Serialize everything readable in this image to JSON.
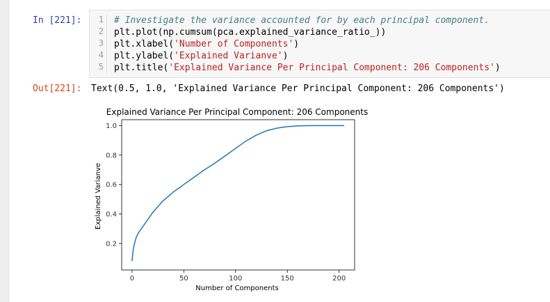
{
  "cell": {
    "in_prompt": "In [221]:",
    "line_numbers": [
      "1",
      "2",
      "3",
      "4",
      "5"
    ],
    "code": {
      "line1_comment": "# Investigate the variance accounted for by each principal component.",
      "line2": "plt.plot(np.cumsum(pca.explained_variance_ratio_))",
      "line3_pre": "plt.xlabel(",
      "line3_str": "'Number of Components'",
      "line3_post": ")",
      "line4_pre": "plt.ylabel(",
      "line4_str": "'Explained Varianve'",
      "line4_post": ")",
      "line5_pre": "plt.title(",
      "line5_str": "'Explained Variance Per Principal Component: 206 Components'",
      "line5_post": ")"
    },
    "out_prompt": "Out[221]:",
    "out_text": "Text(0.5, 1.0, 'Explained Variance Per Principal Component: 206 Components')"
  },
  "chart_data": {
    "type": "line",
    "title": "Explained Variance Per Principal Component: 206 Components",
    "xlabel": "Number of Components",
    "ylabel": "Explained Varianve",
    "xlim": [
      -10,
      215
    ],
    "ylim": [
      0.02,
      1.04
    ],
    "x_ticks": [
      0,
      50,
      100,
      150,
      200
    ],
    "x_tick_labels": [
      "0",
      "50",
      "100",
      "150",
      "200"
    ],
    "y_ticks": [
      0.2,
      0.4,
      0.6,
      0.8,
      1.0
    ],
    "y_tick_labels": [
      "0.2",
      "0.4",
      "0.6",
      "0.8",
      "1.0"
    ],
    "grid": false,
    "line_color": "#1f77b4",
    "series": [
      {
        "x": [
          0,
          1,
          2,
          4,
          6,
          10,
          15,
          20,
          25,
          30,
          40,
          50,
          60,
          70,
          80,
          90,
          100,
          110,
          120,
          130,
          140,
          150,
          160,
          170,
          180,
          190,
          200,
          205
        ],
        "y": [
          0.08,
          0.15,
          0.19,
          0.24,
          0.27,
          0.31,
          0.36,
          0.41,
          0.45,
          0.49,
          0.55,
          0.6,
          0.65,
          0.7,
          0.745,
          0.795,
          0.845,
          0.895,
          0.935,
          0.965,
          0.983,
          0.993,
          0.998,
          1.0,
          1.0,
          1.0,
          1.0,
          1.0
        ]
      }
    ]
  }
}
